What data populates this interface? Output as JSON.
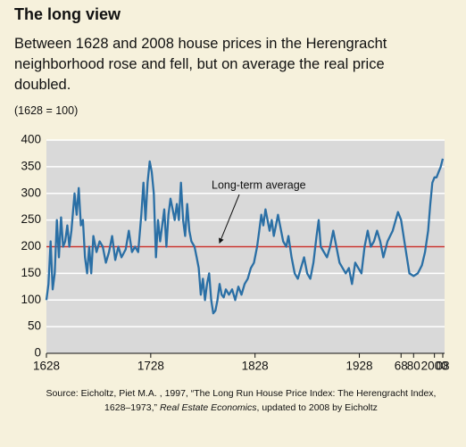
{
  "title": "The long view",
  "subtitle": "Between 1628 and 2008 house prices in the Herengracht neighborhood rose and fell, but on average the real price doubled.",
  "source": [
    "Source: Eicholtz, Piet M.A. , 1997, “The Long Run House Price Index: The Herengracht Index, 1628–1973,” ",
    "Real Estate Economics",
    ", updated to 2008 by Eicholtz"
  ],
  "chart_data": {
    "type": "line",
    "y_label": "(1628 = 100)",
    "xlim": [
      1628,
      2008
    ],
    "xticks": [
      1628,
      1728,
      1828,
      1928,
      {
        "value": 1968,
        "label": "68"
      },
      {
        "value": 1980,
        "label": "80"
      },
      2000,
      {
        "value": 2008,
        "label": "08"
      }
    ],
    "ylim": [
      0,
      400
    ],
    "yticks": [
      0,
      50,
      100,
      150,
      200,
      250,
      300,
      350,
      400
    ],
    "grid": true,
    "average": {
      "value": 200,
      "label": "Long-term average",
      "color": "#c8322d"
    },
    "x": [
      1628,
      1630,
      1632,
      1634,
      1636,
      1638,
      1640,
      1642,
      1644,
      1646,
      1648,
      1650,
      1652,
      1655,
      1657,
      1659,
      1661,
      1663,
      1665,
      1667,
      1669,
      1671,
      1673,
      1676,
      1679,
      1682,
      1685,
      1688,
      1691,
      1694,
      1697,
      1700,
      1704,
      1707,
      1710,
      1713,
      1716,
      1719,
      1721,
      1723,
      1725,
      1727,
      1729,
      1731,
      1733,
      1735,
      1737,
      1739,
      1741,
      1743,
      1745,
      1747,
      1749,
      1751,
      1753,
      1755,
      1757,
      1759,
      1761,
      1763,
      1765,
      1767,
      1770,
      1772,
      1774,
      1776,
      1778,
      1780,
      1782,
      1784,
      1786,
      1788,
      1790,
      1792,
      1794,
      1796,
      1798,
      1800,
      1803,
      1806,
      1809,
      1812,
      1815,
      1818,
      1821,
      1824,
      1827,
      1830,
      1832,
      1834,
      1836,
      1838,
      1840,
      1842,
      1844,
      1846,
      1848,
      1850,
      1852,
      1855,
      1858,
      1860,
      1863,
      1866,
      1869,
      1872,
      1875,
      1878,
      1881,
      1884,
      1887,
      1889,
      1891,
      1894,
      1897,
      1900,
      1903,
      1906,
      1909,
      1912,
      1915,
      1918,
      1921,
      1924,
      1927,
      1930,
      1933,
      1936,
      1939,
      1942,
      1945,
      1948,
      1951,
      1955,
      1960,
      1965,
      1968,
      1972,
      1976,
      1980,
      1984,
      1988,
      1991,
      1994,
      1996,
      1998,
      2000,
      2002,
      2004,
      2006,
      2008
    ],
    "series": [
      {
        "name": "Herengracht index",
        "color": "#2a6fa5",
        "values": [
          100,
          130,
          210,
          120,
          150,
          250,
          180,
          255,
          200,
          210,
          240,
          200,
          230,
          300,
          260,
          310,
          240,
          250,
          180,
          150,
          200,
          150,
          220,
          190,
          210,
          200,
          170,
          190,
          220,
          175,
          200,
          180,
          195,
          230,
          190,
          200,
          190,
          260,
          320,
          250,
          320,
          360,
          340,
          300,
          180,
          250,
          210,
          240,
          270,
          200,
          260,
          290,
          270,
          250,
          280,
          250,
          320,
          250,
          220,
          280,
          230,
          210,
          200,
          180,
          160,
          110,
          140,
          100,
          130,
          150,
          100,
          75,
          80,
          100,
          130,
          110,
          105,
          120,
          110,
          120,
          100,
          125,
          110,
          130,
          140,
          160,
          170,
          200,
          230,
          260,
          240,
          270,
          250,
          230,
          250,
          220,
          240,
          260,
          240,
          210,
          200,
          220,
          180,
          150,
          140,
          160,
          180,
          150,
          140,
          170,
          220,
          250,
          200,
          190,
          180,
          200,
          230,
          200,
          170,
          160,
          150,
          160,
          130,
          170,
          160,
          150,
          200,
          230,
          200,
          210,
          230,
          210,
          180,
          210,
          230,
          265,
          250,
          200,
          150,
          145,
          150,
          165,
          190,
          230,
          280,
          320,
          330,
          330,
          340,
          350,
          365
        ]
      }
    ]
  }
}
